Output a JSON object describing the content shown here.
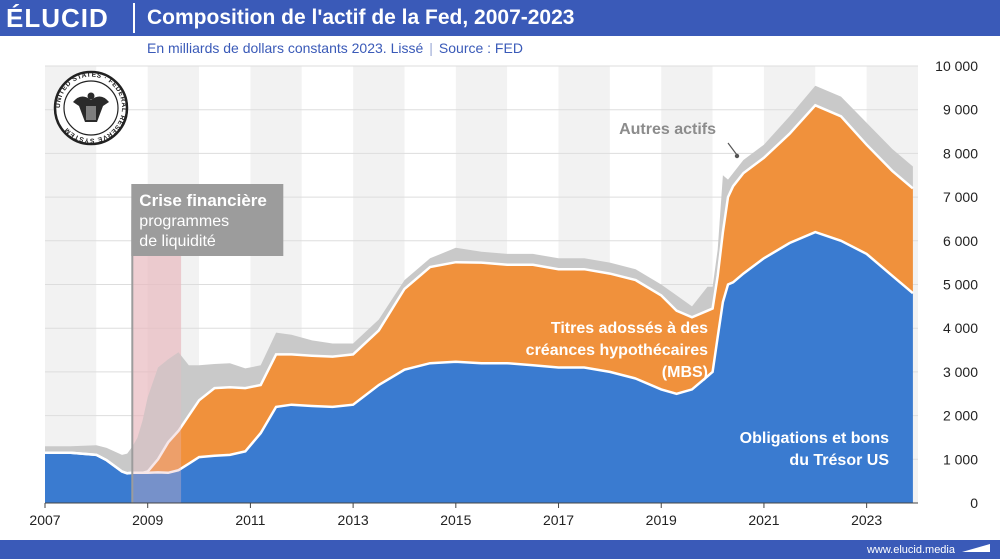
{
  "header": {
    "logo": "ÉLUCID",
    "title": "Composition de l'actif de la Fed, 2007-2023",
    "subtitle": "En milliards de dollars constants 2023. Lissé",
    "source": "Source : FED",
    "website": "www.elucid.media"
  },
  "colors": {
    "treasury": "#3a7bd0",
    "mbs": "#f0913c",
    "other": "#c9c9c9",
    "header": "#3a5ab8",
    "crisis_band": "#e9b9c0",
    "crisis_box": "#9c9c9c"
  },
  "seal": {
    "name": "Federal Reserve System seal",
    "text": "UNITED STATES · FEDERAL RESERVE SYSTEM"
  },
  "annotations": {
    "other": "Autres actifs",
    "mbs_line1": "Titres adossés à des",
    "mbs_line2": "créances hypothécaires",
    "mbs_line3": "(MBS)",
    "treasury_line1": "Obligations et bons",
    "treasury_line2": "du Trésor US",
    "crisis_line1": "Crise financière",
    "crisis_line2": "programmes",
    "crisis_line3": "de liquidité"
  },
  "chart_data": {
    "type": "area",
    "stacked": true,
    "title": "Composition de l'actif de la Fed, 2007-2023",
    "xlabel": "",
    "ylabel": "En milliards de dollars constants 2023",
    "xlim": [
      2007,
      2024
    ],
    "ylim": [
      0,
      10000
    ],
    "x_ticks": [
      2007,
      2009,
      2011,
      2013,
      2015,
      2017,
      2019,
      2021,
      2023
    ],
    "x_tick_labels": [
      "2007",
      "2009",
      "2011",
      "2013",
      "2015",
      "2017",
      "2019",
      "2021",
      "2023"
    ],
    "y_ticks": [
      0,
      1000,
      2000,
      3000,
      4000,
      5000,
      6000,
      7000,
      8000,
      9000,
      10000
    ],
    "y_tick_labels": [
      "0",
      "1 000",
      "2 000",
      "3 000",
      "4 000",
      "5 000",
      "6 000",
      "7 000",
      "8 000",
      "9 000",
      "10 000"
    ],
    "crisis_period": [
      2008.7,
      2009.65
    ],
    "x": [
      2007.0,
      2007.5,
      2008.0,
      2008.2,
      2008.5,
      2008.6,
      2008.7,
      2008.8,
      2008.9,
      2009.0,
      2009.2,
      2009.4,
      2009.6,
      2009.8,
      2010.0,
      2010.3,
      2010.6,
      2010.9,
      2011.2,
      2011.5,
      2011.8,
      2012.2,
      2012.6,
      2013.0,
      2013.5,
      2014.0,
      2014.5,
      2015.0,
      2015.5,
      2016.0,
      2016.5,
      2017.0,
      2017.5,
      2018.0,
      2018.5,
      2019.0,
      2019.3,
      2019.6,
      2019.9,
      2020.0,
      2020.1,
      2020.2,
      2020.3,
      2020.4,
      2020.6,
      2021.0,
      2021.5,
      2022.0,
      2022.5,
      2023.0,
      2023.5,
      2023.9
    ],
    "series": [
      {
        "name": "Obligations et bons du Trésor US",
        "values": [
          1150,
          1150,
          1100,
          980,
          720,
          680,
          690,
          690,
          690,
          690,
          700,
          690,
          750,
          900,
          1050,
          1080,
          1100,
          1180,
          1600,
          2200,
          2250,
          2220,
          2200,
          2250,
          2700,
          3050,
          3200,
          3230,
          3200,
          3200,
          3150,
          3100,
          3100,
          3000,
          2850,
          2600,
          2500,
          2600,
          2900,
          3000,
          3800,
          4600,
          5000,
          5050,
          5250,
          5600,
          5950,
          6200,
          6000,
          5700,
          5200,
          4800
        ]
      },
      {
        "name": "Titres adossés à des créances hypothécaires (MBS)",
        "values": [
          0,
          0,
          0,
          0,
          0,
          0,
          0,
          0,
          0,
          30,
          300,
          700,
          900,
          1100,
          1300,
          1550,
          1550,
          1450,
          1100,
          1200,
          1150,
          1150,
          1150,
          1150,
          1250,
          1850,
          2200,
          2280,
          2300,
          2250,
          2300,
          2250,
          2250,
          2250,
          2250,
          2150,
          1900,
          1650,
          1500,
          1450,
          1400,
          1600,
          2000,
          2200,
          2300,
          2300,
          2500,
          2900,
          2850,
          2500,
          2400,
          2400
        ]
      },
      {
        "name": "Autres actifs",
        "values": [
          150,
          150,
          220,
          280,
          380,
          450,
          600,
          800,
          1200,
          1700,
          2100,
          1900,
          1800,
          1150,
          800,
          550,
          550,
          450,
          450,
          500,
          450,
          350,
          300,
          250,
          250,
          200,
          200,
          330,
          250,
          250,
          250,
          250,
          250,
          250,
          250,
          250,
          350,
          250,
          550,
          500,
          600,
          1300,
          400,
          300,
          300,
          300,
          400,
          450,
          450,
          500,
          500,
          500
        ]
      }
    ]
  }
}
